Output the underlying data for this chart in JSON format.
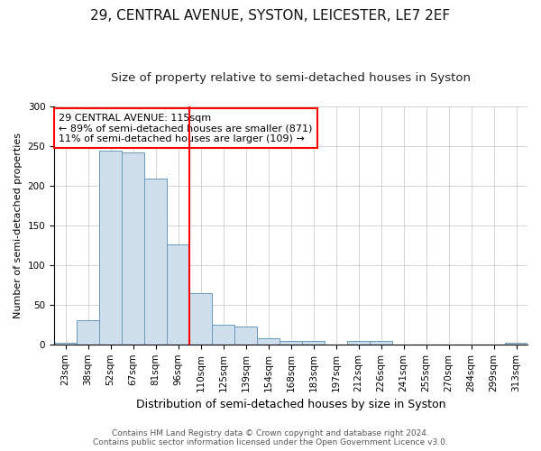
{
  "title1": "29, CENTRAL AVENUE, SYSTON, LEICESTER, LE7 2EF",
  "title2": "Size of property relative to semi-detached houses in Syston",
  "xlabel": "Distribution of semi-detached houses by size in Syston",
  "ylabel": "Number of semi-detached properties",
  "categories": [
    "23sqm",
    "38sqm",
    "52sqm",
    "67sqm",
    "81sqm",
    "96sqm",
    "110sqm",
    "125sqm",
    "139sqm",
    "154sqm",
    "168sqm",
    "183sqm",
    "197sqm",
    "212sqm",
    "226sqm",
    "241sqm",
    "255sqm",
    "270sqm",
    "284sqm",
    "299sqm",
    "313sqm"
  ],
  "values": [
    2,
    30,
    244,
    242,
    209,
    126,
    65,
    25,
    23,
    8,
    4,
    4,
    0,
    4,
    4,
    0,
    0,
    0,
    0,
    0,
    2
  ],
  "bar_color": "#cfdeed",
  "bar_edge_color": "#6699bb",
  "vline_x_index": 6,
  "vline_color": "red",
  "annotation_text": "29 CENTRAL AVENUE: 115sqm\n← 89% of semi-detached houses are smaller (871)\n11% of semi-detached houses are larger (109) →",
  "annotation_box_color": "white",
  "annotation_box_edge_color": "red",
  "footer1": "Contains HM Land Registry data © Crown copyright and database right 2024.",
  "footer2": "Contains public sector information licensed under the Open Government Licence v3.0.",
  "ylim": [
    0,
    300
  ],
  "yticks": [
    0,
    50,
    100,
    150,
    200,
    250,
    300
  ],
  "title1_fontsize": 11,
  "title2_fontsize": 9.5,
  "xlabel_fontsize": 9,
  "ylabel_fontsize": 8,
  "tick_fontsize": 7.5,
  "annotation_fontsize": 8,
  "footer_fontsize": 6.5
}
